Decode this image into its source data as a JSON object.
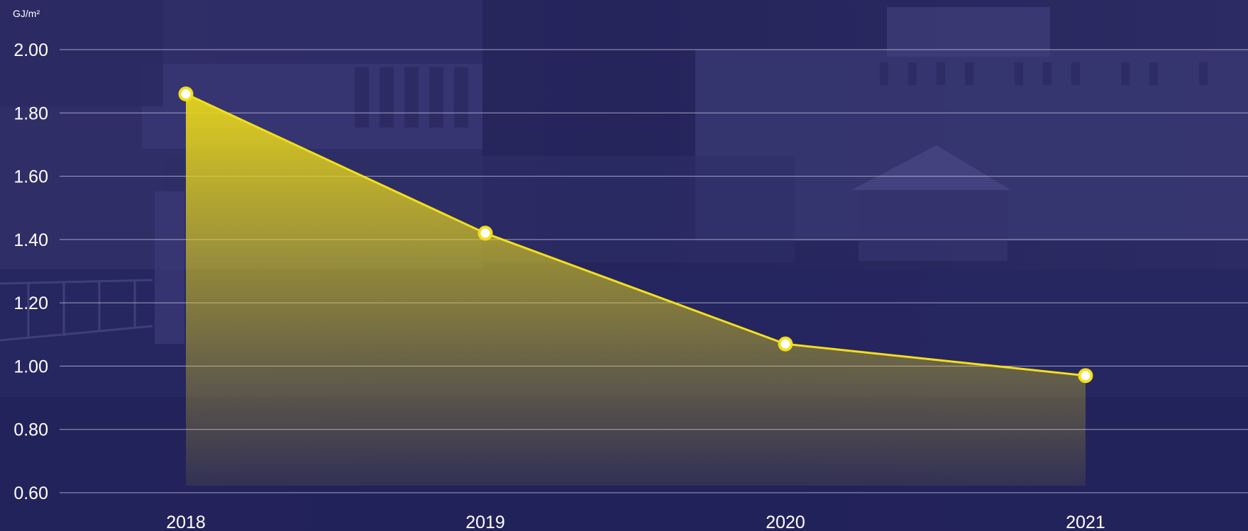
{
  "chart_data": {
    "type": "area",
    "title": "",
    "xlabel": "",
    "ylabel": "",
    "y_unit": "GJ/m²",
    "categories": [
      "2018",
      "2019",
      "2020",
      "2021"
    ],
    "series": [
      {
        "values": [
          1.86,
          1.42,
          1.07,
          0.97
        ]
      }
    ],
    "ylim": [
      0.6,
      2.0
    ],
    "y_ticks": [
      "0.60",
      "0.80",
      "1.00",
      "1.20",
      "1.40",
      "1.60",
      "1.80",
      "2.00"
    ],
    "grid": true,
    "legend": "none",
    "colors": {
      "background": "#23225a",
      "line": "#f3df1c",
      "fill": "#e8d61a",
      "marker_fill": "#ffffff",
      "grid": "#c9c8e4",
      "text": "#ffffff"
    }
  }
}
